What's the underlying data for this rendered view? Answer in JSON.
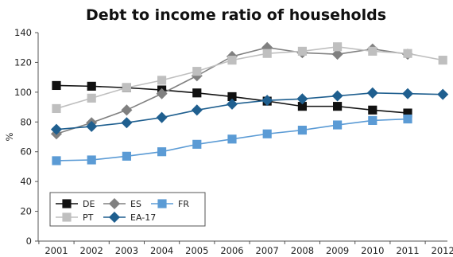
{
  "chart_data": {
    "type": "line",
    "title": "Debt to income ratio of households",
    "ylabel": "%",
    "xlabel": "",
    "ylim": [
      0,
      140
    ],
    "yticks": [
      0,
      20,
      40,
      60,
      80,
      100,
      120,
      140
    ],
    "categories": [
      "2001",
      "2002",
      "2003",
      "2004",
      "2005",
      "2006",
      "2007",
      "2008",
      "2009",
      "2010",
      "2011",
      "2012"
    ],
    "grid": false,
    "legend_position": "bottom-left",
    "series": [
      {
        "name": "DE",
        "color": "#111111",
        "marker": "square",
        "values": [
          104.5,
          104,
          103,
          101.5,
          99.5,
          97,
          94,
          90.5,
          90.5,
          88,
          86,
          null
        ]
      },
      {
        "name": "ES",
        "color": "#808080",
        "marker": "diamond",
        "values": [
          72,
          79.5,
          88,
          99,
          111,
          124,
          130,
          126.5,
          125.5,
          129,
          125.5,
          null
        ]
      },
      {
        "name": "FR",
        "color": "#5b9bd5",
        "marker": "square",
        "values": [
          54,
          54.5,
          57,
          60,
          65,
          68.5,
          72,
          74.5,
          78,
          81,
          82,
          null
        ]
      },
      {
        "name": "PT",
        "color": "#bfbfbf",
        "marker": "square",
        "values": [
          89,
          96,
          103,
          108,
          114,
          121.5,
          126,
          127.5,
          130.5,
          127.5,
          126,
          121.5
        ]
      },
      {
        "name": "EA-17",
        "color": "#1f5f8f",
        "marker": "diamond",
        "values": [
          75,
          77,
          79.5,
          83,
          88,
          92,
          94.5,
          95.5,
          97.5,
          99.5,
          99,
          98.5
        ]
      }
    ]
  }
}
